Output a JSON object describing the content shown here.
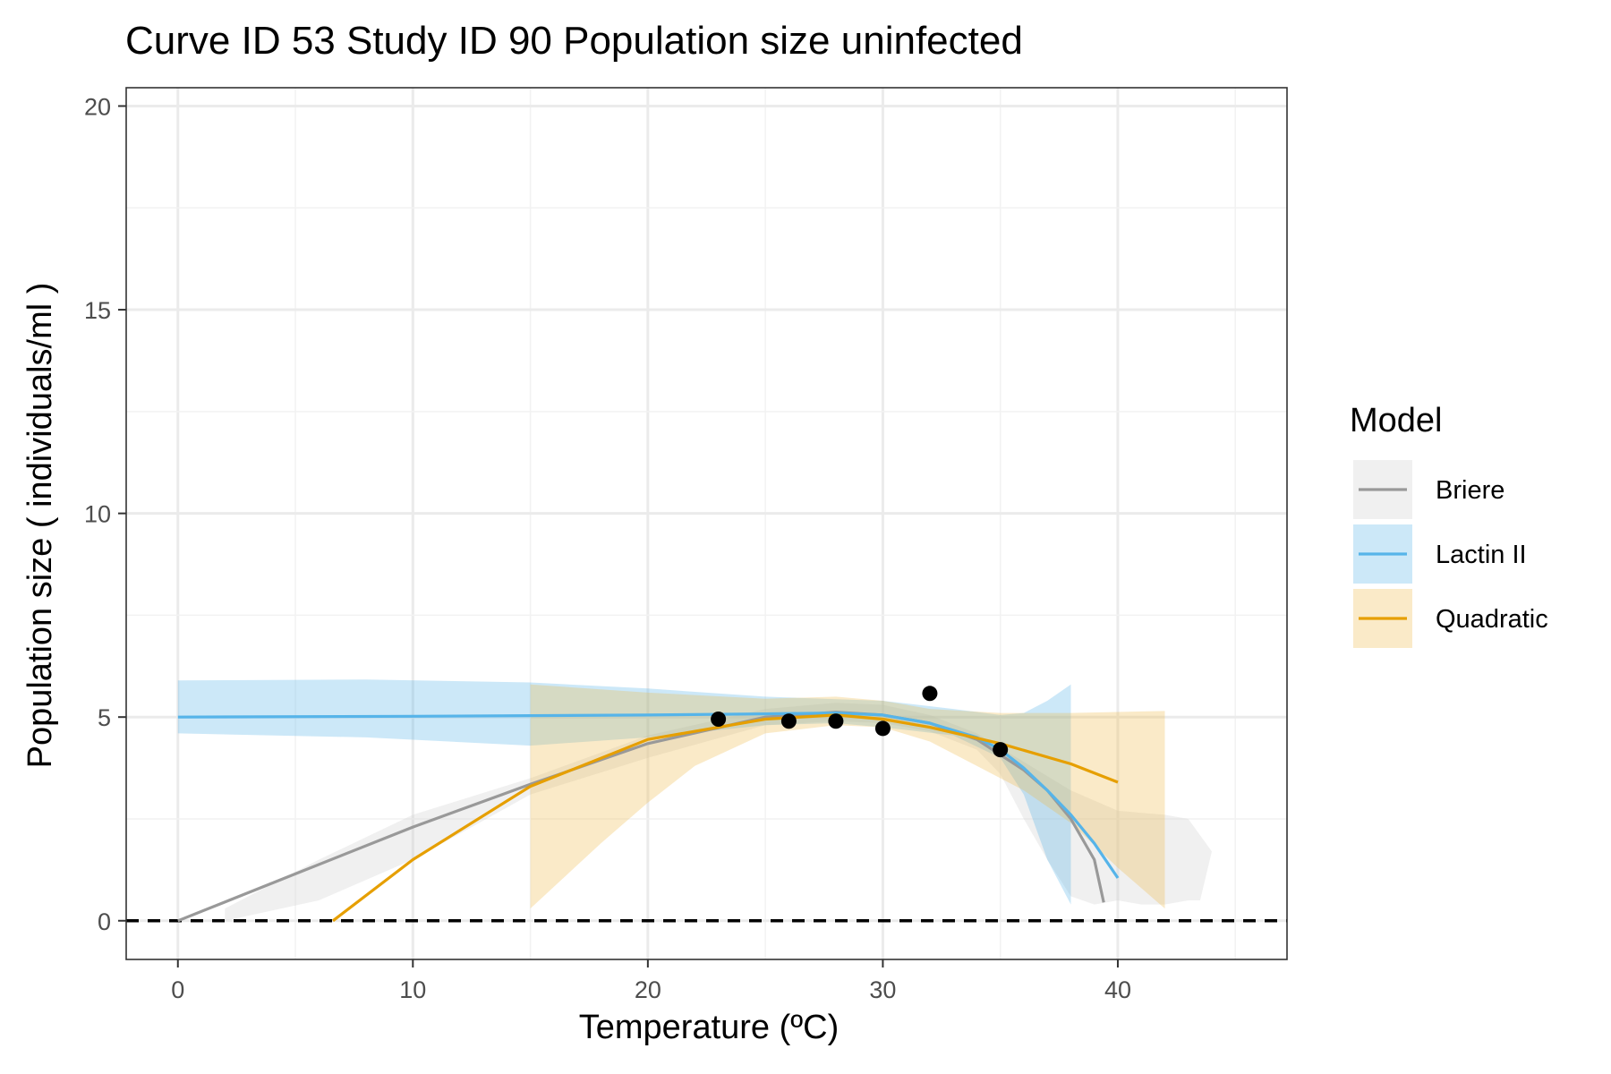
{
  "chart_data": {
    "type": "line",
    "title": "Curve ID 53 Study ID 90 Population size uninfected",
    "xlabel": "Temperature (ºC)",
    "ylabel": "Population size ( individuals/ml )",
    "xlim": [
      -2.2,
      47.2
    ],
    "ylim": [
      -0.95,
      20.45
    ],
    "x_ticks": [
      0,
      10,
      20,
      30,
      40
    ],
    "y_ticks": [
      0,
      5,
      10,
      15,
      20
    ],
    "x_tick_labels": [
      "0",
      "10",
      "20",
      "30",
      "40"
    ],
    "y_tick_labels": [
      "0",
      "5",
      "10",
      "15",
      "20"
    ],
    "grid": true,
    "reference_line": {
      "y": 0,
      "style": "dashed",
      "color": "#000000"
    },
    "legend": {
      "title": "Model",
      "position": "right"
    },
    "series": [
      {
        "name": "Briere",
        "color": "#999999",
        "band_color": "#cccccc",
        "line": [
          [
            0,
            0
          ],
          [
            5,
            1.15
          ],
          [
            10,
            2.3
          ],
          [
            15,
            3.35
          ],
          [
            20,
            4.35
          ],
          [
            25,
            5.0
          ],
          [
            28,
            5.12
          ],
          [
            30,
            5.05
          ],
          [
            32,
            4.85
          ],
          [
            34,
            4.45
          ],
          [
            36,
            3.7
          ],
          [
            37,
            3.2
          ],
          [
            38,
            2.5
          ],
          [
            39,
            1.5
          ],
          [
            39.4,
            0.45
          ]
        ],
        "band_upper": [
          [
            2,
            0.3
          ],
          [
            6,
            1.5
          ],
          [
            10,
            2.6
          ],
          [
            15,
            3.5
          ],
          [
            20,
            4.55
          ],
          [
            25,
            5.2
          ],
          [
            28,
            5.35
          ],
          [
            30,
            5.3
          ],
          [
            32,
            5.05
          ],
          [
            34,
            4.6
          ],
          [
            36,
            3.9
          ],
          [
            38,
            3.2
          ],
          [
            40,
            2.7
          ],
          [
            42,
            2.6
          ],
          [
            43,
            2.5
          ],
          [
            44,
            1.7
          ]
        ],
        "band_lower": [
          [
            44,
            1.7
          ],
          [
            43.5,
            0.5
          ],
          [
            43,
            0.5
          ],
          [
            42,
            0.4
          ],
          [
            41,
            0.4
          ],
          [
            40,
            0.5
          ],
          [
            39,
            0.4
          ],
          [
            38,
            0.6
          ],
          [
            37,
            1.5
          ],
          [
            36,
            2.5
          ],
          [
            35,
            3.6
          ],
          [
            34,
            4.2
          ],
          [
            32,
            4.65
          ],
          [
            30,
            4.85
          ],
          [
            28,
            4.9
          ],
          [
            25,
            4.8
          ],
          [
            20,
            4.0
          ],
          [
            15,
            3.1
          ],
          [
            10,
            1.5
          ],
          [
            6,
            0.5
          ],
          [
            2,
            0.0
          ]
        ]
      },
      {
        "name": "Lactin II",
        "color": "#56B4E9",
        "band_color": "#56B4E9",
        "line": [
          [
            0,
            5.0
          ],
          [
            10,
            5.02
          ],
          [
            20,
            5.05
          ],
          [
            25,
            5.08
          ],
          [
            28,
            5.1
          ],
          [
            30,
            5.05
          ],
          [
            32,
            4.85
          ],
          [
            34,
            4.5
          ],
          [
            35,
            4.2
          ],
          [
            36,
            3.75
          ],
          [
            37,
            3.2
          ],
          [
            38,
            2.6
          ],
          [
            39,
            1.9
          ],
          [
            40,
            1.05
          ]
        ],
        "band_upper": [
          [
            0,
            5.9
          ],
          [
            8,
            5.92
          ],
          [
            15,
            5.85
          ],
          [
            20,
            5.7
          ],
          [
            25,
            5.5
          ],
          [
            30,
            5.4
          ],
          [
            33,
            5.2
          ],
          [
            35,
            5.05
          ],
          [
            36,
            5.1
          ],
          [
            37,
            5.4
          ],
          [
            38,
            5.8
          ]
        ],
        "band_lower": [
          [
            38,
            5.8
          ],
          [
            38,
            0.4
          ],
          [
            37,
            1.5
          ],
          [
            36,
            3.1
          ],
          [
            35,
            4.0
          ],
          [
            33,
            4.55
          ],
          [
            30,
            4.75
          ],
          [
            28,
            4.85
          ],
          [
            25,
            4.8
          ],
          [
            20,
            4.5
          ],
          [
            15,
            4.3
          ],
          [
            8,
            4.5
          ],
          [
            0,
            4.6
          ]
        ]
      },
      {
        "name": "Quadratic",
        "color": "#E69F00",
        "band_color": "#f0b84a",
        "line": [
          [
            6.6,
            0
          ],
          [
            10,
            1.5
          ],
          [
            15,
            3.3
          ],
          [
            20,
            4.45
          ],
          [
            25,
            4.95
          ],
          [
            28,
            5.05
          ],
          [
            30,
            4.95
          ],
          [
            32,
            4.75
          ],
          [
            35,
            4.35
          ],
          [
            38,
            3.85
          ],
          [
            40,
            3.4
          ]
        ],
        "band_upper": [
          [
            15,
            5.8
          ],
          [
            20,
            5.6
          ],
          [
            25,
            5.45
          ],
          [
            28,
            5.5
          ],
          [
            30,
            5.4
          ],
          [
            32,
            5.2
          ],
          [
            35,
            5.1
          ],
          [
            38,
            5.1
          ],
          [
            42,
            5.15
          ]
        ],
        "band_lower": [
          [
            42,
            5.15
          ],
          [
            42,
            0.3
          ],
          [
            40,
            1.3
          ],
          [
            38,
            2.4
          ],
          [
            36,
            3.2
          ],
          [
            34,
            3.8
          ],
          [
            32,
            4.4
          ],
          [
            30,
            4.75
          ],
          [
            28,
            4.8
          ],
          [
            25,
            4.6
          ],
          [
            22,
            3.8
          ],
          [
            20,
            2.9
          ],
          [
            18,
            1.9
          ],
          [
            15,
            0.3
          ]
        ]
      }
    ],
    "points": [
      [
        23,
        4.95
      ],
      [
        26,
        4.9
      ],
      [
        28,
        4.9
      ],
      [
        30,
        4.72
      ],
      [
        32,
        5.58
      ],
      [
        35,
        4.2
      ]
    ]
  }
}
